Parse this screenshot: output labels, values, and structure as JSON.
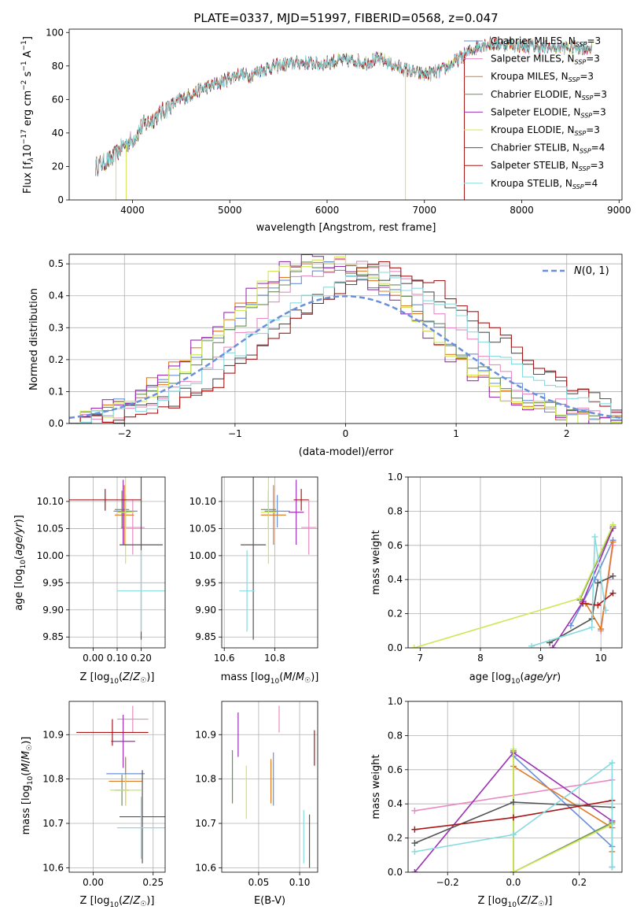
{
  "title": "PLATE=0337, MJD=51997, FIBERID=0568, z=0.047",
  "colors": {
    "Chabrier MILES": "#6a8fdb",
    "Salpeter MILES": "#e98ac3",
    "Kroupa MILES": "#e07b25",
    "Chabrier ELODIE": "#6b8e5a",
    "Salpeter ELODIE": "#9b30b3",
    "Kroupa ELODIE": "#cfe657",
    "Chabrier STELIB": "#555555",
    "Salpeter STELIB": "#a81818",
    "Kroupa STELIB": "#86dbdf"
  },
  "chart_data": [
    {
      "id": "spectrum",
      "type": "line",
      "xlabel": "wavelength [Angstrom, rest frame]",
      "ylabel": "Flux [f",
      "xlim": [
        3350,
        9030
      ],
      "ylim": [
        0,
        102
      ],
      "xticks": [
        4000,
        5000,
        6000,
        7000,
        8000,
        9000
      ],
      "yticks": [
        0,
        20,
        40,
        60,
        80,
        100
      ],
      "legend": {
        "placement": "right",
        "entries": [
          {
            "name": "Chabrier MILES",
            "suffix": "=3"
          },
          {
            "name": "Salpeter MILES",
            "suffix": "=3"
          },
          {
            "name": "Kroupa MILES",
            "suffix": "=3"
          },
          {
            "name": "Chabrier ELODIE",
            "suffix": "=3"
          },
          {
            "name": "Salpeter ELODIE",
            "suffix": "=3"
          },
          {
            "name": "Kroupa ELODIE",
            "suffix": "=3"
          },
          {
            "name": "Chabrier STELIB",
            "suffix": "=4"
          },
          {
            "name": "Salpeter STELIB",
            "suffix": "=3"
          },
          {
            "name": "Kroupa STELIB",
            "suffix": "=4"
          }
        ]
      },
      "continuum": [
        [
          3620,
          20
        ],
        [
          3700,
          22
        ],
        [
          3800,
          25
        ],
        [
          3900,
          32
        ],
        [
          4000,
          36
        ],
        [
          4100,
          44
        ],
        [
          4200,
          48
        ],
        [
          4300,
          52
        ],
        [
          4400,
          57
        ],
        [
          4500,
          60
        ],
        [
          4600,
          63
        ],
        [
          4700,
          66
        ],
        [
          4800,
          68
        ],
        [
          4900,
          70
        ],
        [
          5000,
          73
        ],
        [
          5100,
          75
        ],
        [
          5200,
          74
        ],
        [
          5300,
          77
        ],
        [
          5400,
          79
        ],
        [
          5500,
          80
        ],
        [
          5600,
          81
        ],
        [
          5700,
          82
        ],
        [
          5800,
          82
        ],
        [
          5900,
          81
        ],
        [
          6000,
          82
        ],
        [
          6100,
          83
        ],
        [
          6200,
          83
        ],
        [
          6300,
          83
        ],
        [
          6400,
          82
        ],
        [
          6500,
          84
        ],
        [
          6600,
          83
        ],
        [
          6700,
          80
        ],
        [
          6800,
          78
        ],
        [
          6900,
          76
        ],
        [
          7000,
          75
        ],
        [
          7100,
          76
        ],
        [
          7200,
          78
        ],
        [
          7300,
          82
        ],
        [
          7400,
          86
        ],
        [
          7500,
          90
        ],
        [
          7600,
          93
        ],
        [
          7700,
          93
        ],
        [
          7800,
          93
        ],
        [
          7900,
          93
        ],
        [
          8000,
          92
        ],
        [
          8100,
          92
        ],
        [
          8200,
          91
        ],
        [
          8300,
          91
        ],
        [
          8400,
          91
        ],
        [
          8500,
          91
        ],
        [
          8600,
          91
        ],
        [
          8700,
          91
        ]
      ],
      "dropouts": [
        {
          "x": 3830,
          "series": "Kroupa ELODIE"
        },
        {
          "x": 3935,
          "series": "Kroupa ELODIE"
        },
        {
          "x": 6805,
          "series": "Kroupa ELODIE"
        },
        {
          "x": 7410,
          "series": "Salpeter STELIB"
        }
      ]
    },
    {
      "id": "residuals",
      "type": "line",
      "xlabel": "(data-model)/error",
      "ylabel": "Normed distribution",
      "xlim": [
        -2.5,
        2.5
      ],
      "ylim": [
        0,
        0.53
      ],
      "xticks": [
        -2,
        -1,
        0,
        1,
        2
      ],
      "yticks": [
        0.0,
        0.1,
        0.2,
        0.3,
        0.4,
        0.5
      ],
      "grid": true,
      "legend": {
        "placement": "top-right",
        "entries": [
          "N(0,1)"
        ]
      },
      "reference": {
        "name": "N(0,1)",
        "mean": 0,
        "sigma": 1,
        "color": "#6a8fdb"
      }
    },
    {
      "id": "age_vs_Z",
      "type": "scatter",
      "xlabel": "Z [log",
      "ylabel": "age  [log",
      "xlim": [
        -0.1,
        0.3
      ],
      "ylim": [
        9.83,
        10.145
      ],
      "xticks": [
        0.0,
        0.1,
        0.2
      ],
      "yticks": [
        9.85,
        9.9,
        9.95,
        10.0,
        10.05,
        10.1
      ],
      "grid": true,
      "points": [
        {
          "series": "Chabrier MILES",
          "x": 0.135,
          "y": 10.082,
          "xerr": 0.05,
          "yerr": 0.03
        },
        {
          "series": "Salpeter MILES",
          "x": 0.165,
          "y": 10.052,
          "xerr": 0.05,
          "yerr": 0.05
        },
        {
          "series": "Kroupa MILES",
          "x": 0.13,
          "y": 10.075,
          "xerr": 0.04,
          "yerr": 0.055
        },
        {
          "series": "Chabrier ELODIE",
          "x": 0.12,
          "y": 10.085,
          "xerr": 0.03,
          "yerr": 0.035
        },
        {
          "series": "Salpeter ELODIE",
          "x": 0.125,
          "y": 10.08,
          "xerr": 0.02,
          "yerr": 0.06
        },
        {
          "series": "Kroupa ELODIE",
          "x": 0.135,
          "y": 10.08,
          "xerr": 0.035,
          "yerr": 0.095
        },
        {
          "series": "Chabrier STELIB",
          "x": 0.2,
          "y": 10.02,
          "xerr": 0.09,
          "yerr": 0.175
        },
        {
          "series": "Salpeter STELIB",
          "x": 0.05,
          "y": 10.103,
          "xerr": 0.15,
          "yerr": 0.02
        },
        {
          "series": "Kroupa STELIB",
          "x": 0.2,
          "y": 9.935,
          "xerr": 0.1,
          "yerr": 0.075
        }
      ]
    },
    {
      "id": "age_vs_mass",
      "type": "scatter",
      "xlabel": "mass [log",
      "ylabel": "",
      "xlim": [
        10.59,
        10.97
      ],
      "ylim": [
        9.83,
        10.145
      ],
      "xticks": [
        10.6,
        10.8
      ],
      "yticks": [
        9.85,
        9.9,
        9.95,
        10.0,
        10.05,
        10.1
      ],
      "grid": true,
      "points": [
        {
          "series": "Chabrier MILES",
          "x": 10.81,
          "y": 10.082,
          "xerr": 0.05,
          "yerr": 0.03
        },
        {
          "series": "Salpeter MILES",
          "x": 10.935,
          "y": 10.052,
          "xerr": 0.03,
          "yerr": 0.05
        },
        {
          "series": "Kroupa MILES",
          "x": 10.795,
          "y": 10.075,
          "xerr": 0.05,
          "yerr": 0.055
        },
        {
          "series": "Chabrier ELODIE",
          "x": 10.775,
          "y": 10.085,
          "xerr": 0.03,
          "yerr": 0.035
        },
        {
          "series": "Salpeter ELODIE",
          "x": 10.885,
          "y": 10.08,
          "xerr": 0.03,
          "yerr": 0.06
        },
        {
          "series": "Kroupa ELODIE",
          "x": 10.775,
          "y": 10.08,
          "xerr": 0.03,
          "yerr": 0.095
        },
        {
          "series": "Chabrier STELIB",
          "x": 10.715,
          "y": 10.02,
          "xerr": 0.05,
          "yerr": 0.175
        },
        {
          "series": "Salpeter STELIB",
          "x": 10.905,
          "y": 10.103,
          "xerr": 0.03,
          "yerr": 0.02
        },
        {
          "series": "Kroupa STELIB",
          "x": 10.69,
          "y": 9.935,
          "xerr": 0.03,
          "yerr": 0.075
        }
      ]
    },
    {
      "id": "weight_vs_age",
      "type": "line",
      "xlabel": "age  [log",
      "ylabel": "mass weight",
      "xlim": [
        6.8,
        10.35
      ],
      "ylim": [
        0,
        1
      ],
      "xticks": [
        7,
        8,
        9,
        10
      ],
      "yticks": [
        0.0,
        0.2,
        0.4,
        0.6,
        0.8,
        1.0
      ],
      "grid": true,
      "series": [
        {
          "name": "Chabrier MILES",
          "x": [
            9.5,
            9.9,
            10.2
          ],
          "y": [
            0.13,
            0.4,
            0.63
          ]
        },
        {
          "name": "Salpeter MILES",
          "x": [
            10.0,
            10.12,
            10.2
          ],
          "y": [
            0.1,
            0.4,
            0.6
          ]
        },
        {
          "name": "Kroupa MILES",
          "x": [
            9.75,
            10.0,
            10.2
          ],
          "y": [
            0.26,
            0.11,
            0.62
          ]
        },
        {
          "name": "Chabrier ELODIE",
          "x": [
            9.65,
            10.2
          ],
          "y": [
            0.28,
            0.71
          ]
        },
        {
          "name": "Salpeter ELODIE",
          "x": [
            9.2,
            9.7,
            10.2
          ],
          "y": [
            0.0,
            0.27,
            0.7
          ]
        },
        {
          "name": "Kroupa ELODIE",
          "x": [
            6.9,
            9.65,
            10.2
          ],
          "y": [
            0.0,
            0.29,
            0.72
          ]
        },
        {
          "name": "Chabrier STELIB",
          "x": [
            9.15,
            9.85,
            9.95,
            10.2
          ],
          "y": [
            0.03,
            0.17,
            0.38,
            0.42
          ]
        },
        {
          "name": "Salpeter STELIB",
          "x": [
            9.7,
            9.95,
            10.2
          ],
          "y": [
            0.26,
            0.25,
            0.32
          ]
        },
        {
          "name": "Kroupa STELIB",
          "x": [
            8.85,
            9.85,
            9.9,
            10.08
          ],
          "y": [
            0.01,
            0.12,
            0.65,
            0.22
          ]
        }
      ]
    },
    {
      "id": "mass_vs_Z",
      "type": "scatter",
      "xlabel": "Z [log",
      "ylabel": "mass [log",
      "xlim": [
        -0.1,
        0.3
      ],
      "ylim": [
        10.59,
        10.975
      ],
      "xticks": [
        0.0,
        0.25
      ],
      "xtick_labels": [
        "0.00",
        "0.25"
      ],
      "yticks": [
        10.6,
        10.7,
        10.8,
        10.9
      ],
      "grid": true,
      "points": [
        {
          "series": "Chabrier MILES",
          "x": 0.135,
          "y": 10.812,
          "xerr": 0.08,
          "yerr": 0.035
        },
        {
          "series": "Salpeter MILES",
          "x": 0.165,
          "y": 10.935,
          "xerr": 0.065,
          "yerr": 0.03
        },
        {
          "series": "Kroupa MILES",
          "x": 0.135,
          "y": 10.795,
          "xerr": 0.07,
          "yerr": 0.055
        },
        {
          "series": "Chabrier ELODIE",
          "x": 0.12,
          "y": 10.775,
          "xerr": 0.03,
          "yerr": 0.035
        },
        {
          "series": "Salpeter ELODIE",
          "x": 0.125,
          "y": 10.885,
          "xerr": 0.05,
          "yerr": 0.06
        },
        {
          "series": "Kroupa ELODIE",
          "x": 0.135,
          "y": 10.775,
          "xerr": 0.065,
          "yerr": 0.035
        },
        {
          "series": "Chabrier STELIB",
          "x": 0.205,
          "y": 10.715,
          "xerr": 0.095,
          "yerr": 0.105
        },
        {
          "series": "Salpeter STELIB",
          "x": 0.08,
          "y": 10.905,
          "xerr": 0.15,
          "yerr": 0.03
        },
        {
          "series": "Kroupa STELIB",
          "x": 0.2,
          "y": 10.69,
          "xerr": 0.1,
          "yerr": 0.07
        }
      ]
    },
    {
      "id": "mass_vs_ebv",
      "type": "scatter",
      "xlabel": "E(B-V)",
      "ylabel": "",
      "xlim": [
        0.005,
        0.122
      ],
      "ylim": [
        10.59,
        10.975
      ],
      "xticks": [
        0.05,
        0.1
      ],
      "xtick_labels": [
        "0.05",
        "0.10"
      ],
      "yticks": [
        10.6,
        10.7,
        10.8,
        10.9
      ],
      "grid": true,
      "points": [
        {
          "series": "Chabrier MILES",
          "x": 0.068,
          "y": 10.8,
          "yerr": 0.06
        },
        {
          "series": "Salpeter MILES",
          "x": 0.075,
          "y": 10.935,
          "yerr": 0.03
        },
        {
          "series": "Kroupa MILES",
          "x": 0.065,
          "y": 10.795,
          "yerr": 0.05
        },
        {
          "series": "Chabrier ELODIE",
          "x": 0.018,
          "y": 10.805,
          "yerr": 0.06
        },
        {
          "series": "Salpeter ELODIE",
          "x": 0.025,
          "y": 10.9,
          "yerr": 0.05
        },
        {
          "series": "Kroupa ELODIE",
          "x": 0.035,
          "y": 10.77,
          "yerr": 0.06
        },
        {
          "series": "Chabrier STELIB",
          "x": 0.112,
          "y": 10.66,
          "yerr": 0.06
        },
        {
          "series": "Salpeter STELIB",
          "x": 0.118,
          "y": 10.87,
          "yerr": 0.04
        },
        {
          "series": "Kroupa STELIB",
          "x": 0.105,
          "y": 10.67,
          "yerr": 0.06
        }
      ]
    },
    {
      "id": "weight_vs_Z",
      "type": "line",
      "xlabel": "Z [log",
      "ylabel": "mass weight",
      "xlim": [
        -0.32,
        0.33
      ],
      "ylim": [
        0,
        1
      ],
      "xticks": [
        -0.2,
        0.0,
        0.2
      ],
      "yticks": [
        0.0,
        0.2,
        0.4,
        0.6,
        0.8,
        1.0
      ],
      "grid": true,
      "series": [
        {
          "name": "Chabrier MILES",
          "x": [
            0.0,
            0.3,
            0.3
          ],
          "y": [
            0.68,
            0.15,
            0.03
          ]
        },
        {
          "name": "Salpeter MILES",
          "x": [
            -0.3,
            0.3
          ],
          "y": [
            0.36,
            0.54
          ]
        },
        {
          "name": "Kroupa MILES",
          "x": [
            0.0,
            0.0,
            0.3,
            0.3
          ],
          "y": [
            0.0,
            0.62,
            0.26,
            0.12
          ]
        },
        {
          "name": "Chabrier ELODIE",
          "x": [
            0.0,
            0.0,
            0.3
          ],
          "y": [
            0.71,
            0.0,
            0.29
          ]
        },
        {
          "name": "Salpeter ELODIE",
          "x": [
            -0.3,
            0.0,
            0.3
          ],
          "y": [
            0.0,
            0.7,
            0.3
          ]
        },
        {
          "name": "Kroupa ELODIE",
          "x": [
            0.0,
            0.0,
            0.3
          ],
          "y": [
            0.72,
            0.0,
            0.28
          ]
        },
        {
          "name": "Chabrier STELIB",
          "x": [
            -0.3,
            0.0,
            0.3
          ],
          "y": [
            0.17,
            0.41,
            0.38
          ]
        },
        {
          "name": "Salpeter STELIB",
          "x": [
            -0.3,
            0.0,
            0.3
          ],
          "y": [
            0.25,
            0.32,
            0.42
          ]
        },
        {
          "name": "Kroupa STELIB",
          "x": [
            -0.3,
            0.0,
            0.3,
            0.3
          ],
          "y": [
            0.12,
            0.22,
            0.64,
            0.03
          ]
        }
      ]
    }
  ]
}
